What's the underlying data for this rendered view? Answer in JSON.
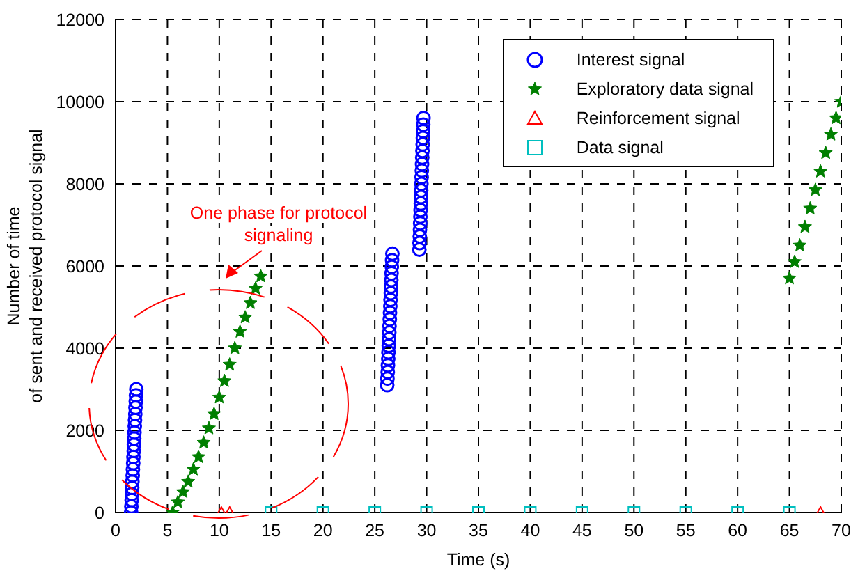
{
  "chart_data": {
    "type": "scatter",
    "xlabel": "Time (s)",
    "ylabel": "Number of time\nof sent and received protocol signal",
    "xlim": [
      0,
      70
    ],
    "xticks": [
      0,
      5,
      10,
      15,
      20,
      25,
      30,
      35,
      40,
      45,
      50,
      55,
      60,
      65,
      70
    ],
    "ylim": [
      0,
      12000
    ],
    "yticks": [
      0,
      2000,
      4000,
      6000,
      8000,
      10000,
      12000
    ],
    "grid": true,
    "legend": "top right",
    "annotations": [
      "One phase for protocol signaling"
    ],
    "series": [
      {
        "name": "Interest signal",
        "color": "#0000ff",
        "marker": "circle",
        "x": [
          1.5,
          1.52,
          1.55,
          1.57,
          1.6,
          1.62,
          1.65,
          1.67,
          1.7,
          1.72,
          1.75,
          1.77,
          1.8,
          1.82,
          1.85,
          1.87,
          1.9,
          1.92,
          1.95,
          1.97,
          2.0,
          26.2,
          26.22,
          26.25,
          26.27,
          26.3,
          26.32,
          26.35,
          26.37,
          26.4,
          26.42,
          26.45,
          26.47,
          26.5,
          26.52,
          26.55,
          26.57,
          26.6,
          26.62,
          26.65,
          26.67,
          26.7,
          29.3,
          29.32,
          29.34,
          29.36,
          29.38,
          29.4,
          29.42,
          29.44,
          29.46,
          29.48,
          29.5,
          29.52,
          29.54,
          29.56,
          29.58,
          29.6,
          29.62,
          29.64,
          29.66,
          29.68,
          29.7
        ],
        "values": [
          0,
          150,
          300,
          450,
          600,
          750,
          900,
          1050,
          1200,
          1350,
          1500,
          1650,
          1800,
          1950,
          2100,
          2250,
          2400,
          2550,
          2700,
          2850,
          3000,
          3100,
          3260,
          3420,
          3580,
          3740,
          3900,
          4060,
          4220,
          4380,
          4540,
          4700,
          4860,
          5020,
          5180,
          5340,
          5500,
          5660,
          5820,
          5980,
          6140,
          6300,
          6400,
          6560,
          6720,
          6880,
          7040,
          7200,
          7360,
          7520,
          7680,
          7840,
          8000,
          8160,
          8320,
          8480,
          8640,
          8800,
          8960,
          9120,
          9280,
          9440,
          9600
        ]
      },
      {
        "name": "Exploratory data signal",
        "color": "#007f00",
        "marker": "star",
        "x": [
          5.5,
          6,
          6.5,
          7,
          7.5,
          8,
          8.5,
          9,
          9.5,
          10,
          10.5,
          11,
          11.5,
          12,
          12.5,
          13,
          13.5,
          14,
          65,
          65.5,
          66,
          66.5,
          67,
          67.5,
          68,
          68.5,
          69,
          69.5,
          70
        ],
        "values": [
          0,
          250,
          500,
          750,
          1050,
          1350,
          1700,
          2050,
          2400,
          2800,
          3200,
          3600,
          4000,
          4400,
          4750,
          5100,
          5450,
          5750,
          5700,
          6100,
          6500,
          6950,
          7400,
          7850,
          8300,
          8750,
          9200,
          9600,
          10000
        ]
      },
      {
        "name": "Reinforcement signal",
        "color": "#ff0000",
        "marker": "triangle",
        "x": [
          10.2,
          11,
          68
        ],
        "values": [
          0,
          0,
          0
        ]
      },
      {
        "name": "Data signal",
        "color": "#00bfbf",
        "marker": "square",
        "x": [
          15,
          20,
          25,
          30,
          35,
          40,
          45,
          50,
          55,
          60,
          65
        ],
        "values": [
          0,
          0,
          0,
          0,
          0,
          0,
          0,
          0,
          0,
          0,
          0
        ]
      }
    ]
  }
}
